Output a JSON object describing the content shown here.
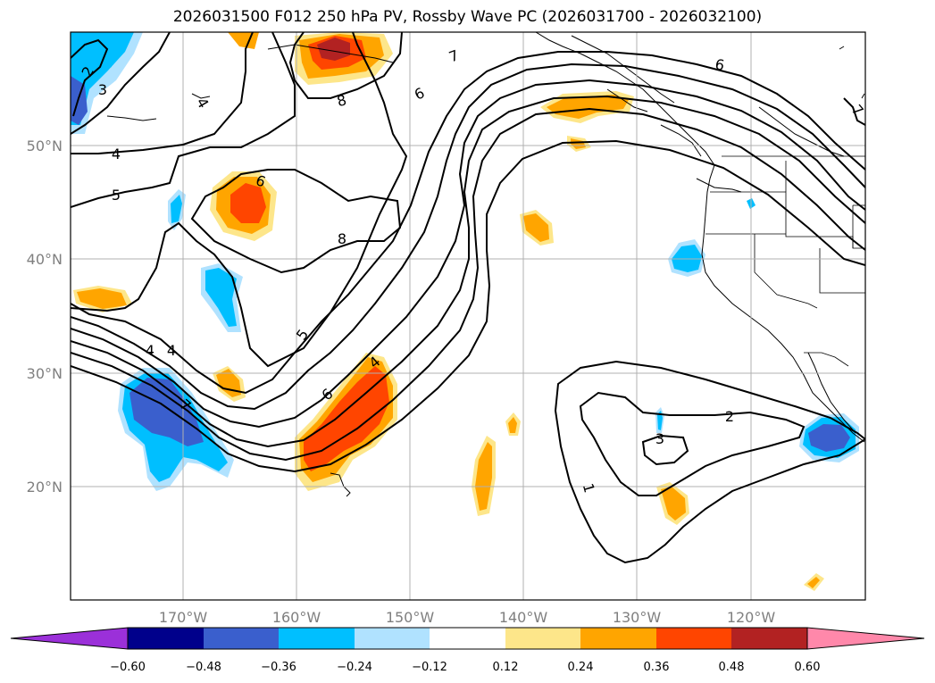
{
  "title": "2026031500 F012 250 hPa PV, Rossby Wave PC (2026031700 - 2026032100)",
  "axes": {
    "lat_labels": [
      "50°N",
      "40°N",
      "30°N",
      "20°N"
    ],
    "lon_labels": [
      "170°W",
      "160°W",
      "150°W",
      "140°W",
      "130°W",
      "120°W"
    ]
  },
  "contour_labels": [
    "2",
    "3",
    "4",
    "5",
    "6",
    "7",
    "8",
    "4",
    "6",
    "7",
    "6",
    "8",
    "4",
    "4",
    "5",
    "6",
    "7",
    "4",
    "1",
    "2",
    "3"
  ],
  "colorbar": {
    "ticks": [
      "−0.60",
      "−0.48",
      "−0.36",
      "−0.24",
      "−0.12",
      "0.12",
      "0.24",
      "0.36",
      "0.48",
      "0.60"
    ],
    "colors": [
      "#9b30d9",
      "#00008b",
      "#3a5fcd",
      "#00bfff",
      "#b0e2ff",
      "#ffffff",
      "#fde68a",
      "#ffa500",
      "#ff4500",
      "#b22222",
      "#ff88aa"
    ]
  }
}
